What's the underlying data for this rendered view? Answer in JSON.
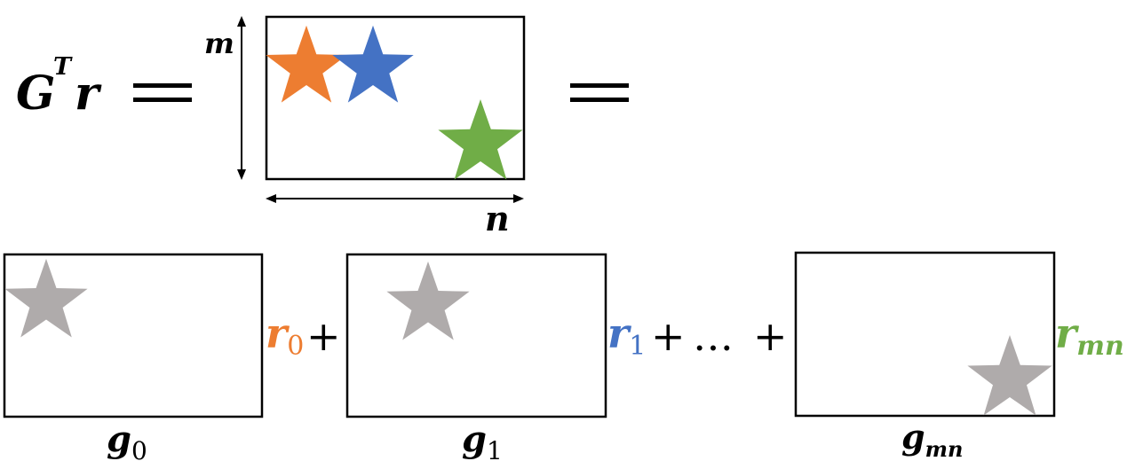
{
  "equation": {
    "lhs_base": "G",
    "lhs_sup": "T",
    "lhs_vec": "r",
    "equals": "="
  },
  "matrix": {
    "dim_rows": "m",
    "dim_cols": "n"
  },
  "terms": [
    {
      "g_base": "g",
      "g_sub": "0",
      "r_base": "r",
      "r_sub": "0"
    },
    {
      "g_base": "g",
      "g_sub": "1",
      "r_base": "r",
      "r_sub": "1"
    },
    {
      "g_base": "g",
      "g_sub": "mn",
      "r_base": "r",
      "r_sub": "mn"
    }
  ],
  "operators": {
    "plus": "+",
    "ellipsis": "…"
  },
  "colors": {
    "orange": "#ED7D31",
    "blue": "#4472C4",
    "green": "#70AD47",
    "gray": "#AFABAB",
    "black": "#000000"
  }
}
